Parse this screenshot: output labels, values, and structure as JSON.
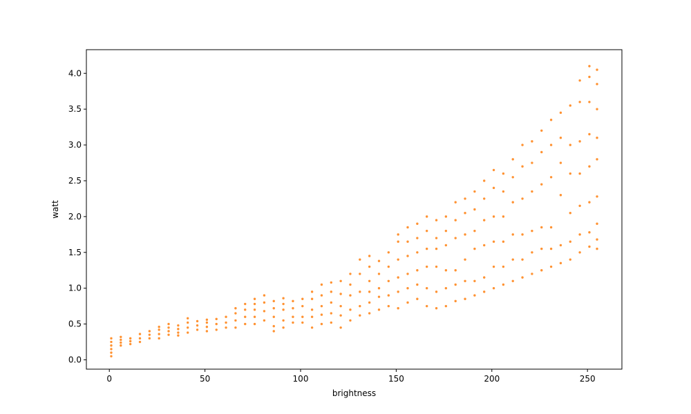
{
  "chart_data": {
    "type": "scatter",
    "xlabel": "brightness",
    "ylabel": "watt",
    "xlim": [
      -12,
      268
    ],
    "ylim": [
      -0.13,
      4.33
    ],
    "x_ticks": [
      0,
      50,
      100,
      150,
      200,
      250
    ],
    "x_tick_labels": [
      "0",
      "50",
      "100",
      "150",
      "200",
      "250"
    ],
    "y_ticks": [
      0,
      0.5,
      1.0,
      1.5,
      2.0,
      2.5,
      3.0,
      3.5,
      4.0
    ],
    "y_tick_labels": [
      "0.0",
      "0.5",
      "1.0",
      "1.5",
      "2.0",
      "2.5",
      "3.0",
      "3.5",
      "4.0"
    ],
    "grid": false,
    "point_color": "#ff7f0e",
    "series": [
      {
        "points": [
          [
            1,
            0.05
          ],
          [
            1,
            0.1
          ],
          [
            1,
            0.15
          ],
          [
            1,
            0.2
          ],
          [
            1,
            0.25
          ],
          [
            1,
            0.3
          ],
          [
            6,
            0.2
          ],
          [
            6,
            0.24
          ],
          [
            6,
            0.28
          ],
          [
            6,
            0.32
          ],
          [
            11,
            0.22
          ],
          [
            11,
            0.26
          ],
          [
            11,
            0.3
          ],
          [
            16,
            0.25
          ],
          [
            16,
            0.3
          ],
          [
            16,
            0.36
          ],
          [
            21,
            0.3
          ],
          [
            21,
            0.35
          ],
          [
            21,
            0.4
          ],
          [
            26,
            0.3
          ],
          [
            26,
            0.36
          ],
          [
            26,
            0.42
          ],
          [
            26,
            0.46
          ],
          [
            31,
            0.35
          ],
          [
            31,
            0.4
          ],
          [
            31,
            0.45
          ],
          [
            31,
            0.5
          ],
          [
            36,
            0.34
          ],
          [
            36,
            0.38
          ],
          [
            36,
            0.43
          ],
          [
            36,
            0.48
          ],
          [
            41,
            0.38
          ],
          [
            41,
            0.45
          ],
          [
            41,
            0.52
          ],
          [
            41,
            0.58
          ],
          [
            46,
            0.42
          ],
          [
            46,
            0.48
          ],
          [
            46,
            0.54
          ],
          [
            51,
            0.4
          ],
          [
            51,
            0.46
          ],
          [
            51,
            0.52
          ],
          [
            51,
            0.56
          ],
          [
            56,
            0.42
          ],
          [
            56,
            0.5
          ],
          [
            56,
            0.57
          ],
          [
            61,
            0.45
          ],
          [
            61,
            0.52
          ],
          [
            61,
            0.6
          ],
          [
            66,
            0.45
          ],
          [
            66,
            0.55
          ],
          [
            66,
            0.65
          ],
          [
            66,
            0.72
          ],
          [
            71,
            0.5
          ],
          [
            71,
            0.6
          ],
          [
            71,
            0.7
          ],
          [
            71,
            0.78
          ],
          [
            76,
            0.5
          ],
          [
            76,
            0.6
          ],
          [
            76,
            0.7
          ],
          [
            76,
            0.78
          ],
          [
            76,
            0.85
          ],
          [
            81,
            0.55
          ],
          [
            81,
            0.68
          ],
          [
            81,
            0.8
          ],
          [
            81,
            0.9
          ],
          [
            86,
            0.4
          ],
          [
            86,
            0.47
          ],
          [
            86,
            0.6
          ],
          [
            86,
            0.72
          ],
          [
            86,
            0.82
          ],
          [
            91,
            0.45
          ],
          [
            91,
            0.55
          ],
          [
            91,
            0.7
          ],
          [
            91,
            0.78
          ],
          [
            91,
            0.86
          ],
          [
            96,
            0.52
          ],
          [
            96,
            0.6
          ],
          [
            96,
            0.72
          ],
          [
            96,
            0.82
          ],
          [
            101,
            0.52
          ],
          [
            101,
            0.6
          ],
          [
            101,
            0.75
          ],
          [
            101,
            0.85
          ],
          [
            106,
            0.45
          ],
          [
            106,
            0.6
          ],
          [
            106,
            0.7
          ],
          [
            106,
            0.85
          ],
          [
            106,
            0.95
          ],
          [
            111,
            0.5
          ],
          [
            111,
            0.63
          ],
          [
            111,
            0.75
          ],
          [
            111,
            0.9
          ],
          [
            111,
            1.05
          ],
          [
            116,
            0.52
          ],
          [
            116,
            0.65
          ],
          [
            116,
            0.8
          ],
          [
            116,
            0.95
          ],
          [
            116,
            1.08
          ],
          [
            121,
            0.45
          ],
          [
            121,
            0.62
          ],
          [
            121,
            0.75
          ],
          [
            121,
            0.92
          ],
          [
            121,
            1.1
          ],
          [
            126,
            0.55
          ],
          [
            126,
            0.7
          ],
          [
            126,
            0.9
          ],
          [
            126,
            1.05
          ],
          [
            126,
            1.2
          ],
          [
            131,
            0.62
          ],
          [
            131,
            0.75
          ],
          [
            131,
            0.95
          ],
          [
            131,
            1.2
          ],
          [
            131,
            1.4
          ],
          [
            136,
            0.65
          ],
          [
            136,
            0.8
          ],
          [
            136,
            0.95
          ],
          [
            136,
            1.1
          ],
          [
            136,
            1.3
          ],
          [
            136,
            1.45
          ],
          [
            141,
            0.7
          ],
          [
            141,
            0.88
          ],
          [
            141,
            1.0
          ],
          [
            141,
            1.2
          ],
          [
            141,
            1.38
          ],
          [
            146,
            0.75
          ],
          [
            146,
            0.9
          ],
          [
            146,
            1.1
          ],
          [
            146,
            1.3
          ],
          [
            146,
            1.5
          ],
          [
            151,
            0.72
          ],
          [
            151,
            0.95
          ],
          [
            151,
            1.15
          ],
          [
            151,
            1.4
          ],
          [
            151,
            1.65
          ],
          [
            151,
            1.75
          ],
          [
            156,
            0.8
          ],
          [
            156,
            1.0
          ],
          [
            156,
            1.2
          ],
          [
            156,
            1.45
          ],
          [
            156,
            1.65
          ],
          [
            156,
            1.85
          ],
          [
            161,
            0.85
          ],
          [
            161,
            1.05
          ],
          [
            161,
            1.25
          ],
          [
            161,
            1.5
          ],
          [
            161,
            1.7
          ],
          [
            161,
            1.9
          ],
          [
            166,
            0.75
          ],
          [
            166,
            1.0
          ],
          [
            166,
            1.3
          ],
          [
            166,
            1.55
          ],
          [
            166,
            1.8
          ],
          [
            166,
            2.0
          ],
          [
            171,
            0.72
          ],
          [
            171,
            0.95
          ],
          [
            171,
            1.3
          ],
          [
            171,
            1.55
          ],
          [
            171,
            1.7
          ],
          [
            171,
            1.95
          ],
          [
            176,
            0.75
          ],
          [
            176,
            1.0
          ],
          [
            176,
            1.25
          ],
          [
            176,
            1.6
          ],
          [
            176,
            1.8
          ],
          [
            176,
            2.0
          ],
          [
            181,
            0.82
          ],
          [
            181,
            1.05
          ],
          [
            181,
            1.25
          ],
          [
            181,
            1.7
          ],
          [
            181,
            1.95
          ],
          [
            181,
            2.2
          ],
          [
            186,
            0.85
          ],
          [
            186,
            1.1
          ],
          [
            186,
            1.4
          ],
          [
            186,
            1.75
          ],
          [
            186,
            2.05
          ],
          [
            186,
            2.25
          ],
          [
            191,
            0.9
          ],
          [
            191,
            1.1
          ],
          [
            191,
            1.55
          ],
          [
            191,
            1.8
          ],
          [
            191,
            2.1
          ],
          [
            191,
            2.35
          ],
          [
            196,
            0.95
          ],
          [
            196,
            1.15
          ],
          [
            196,
            1.6
          ],
          [
            196,
            1.95
          ],
          [
            196,
            2.25
          ],
          [
            196,
            2.5
          ],
          [
            201,
            1.0
          ],
          [
            201,
            1.3
          ],
          [
            201,
            1.65
          ],
          [
            201,
            2.0
          ],
          [
            201,
            2.4
          ],
          [
            201,
            2.65
          ],
          [
            206,
            1.05
          ],
          [
            206,
            1.3
          ],
          [
            206,
            1.65
          ],
          [
            206,
            2.0
          ],
          [
            206,
            2.35
          ],
          [
            206,
            2.6
          ],
          [
            211,
            1.1
          ],
          [
            211,
            1.4
          ],
          [
            211,
            1.75
          ],
          [
            211,
            2.2
          ],
          [
            211,
            2.55
          ],
          [
            211,
            2.8
          ],
          [
            216,
            1.15
          ],
          [
            216,
            1.4
          ],
          [
            216,
            1.75
          ],
          [
            216,
            2.25
          ],
          [
            216,
            2.7
          ],
          [
            216,
            3.0
          ],
          [
            221,
            1.2
          ],
          [
            221,
            1.5
          ],
          [
            221,
            1.8
          ],
          [
            221,
            2.35
          ],
          [
            221,
            2.75
          ],
          [
            221,
            3.05
          ],
          [
            226,
            1.25
          ],
          [
            226,
            1.55
          ],
          [
            226,
            1.85
          ],
          [
            226,
            2.45
          ],
          [
            226,
            2.9
          ],
          [
            226,
            3.2
          ],
          [
            231,
            1.3
          ],
          [
            231,
            1.55
          ],
          [
            231,
            1.85
          ],
          [
            231,
            2.55
          ],
          [
            231,
            3.0
          ],
          [
            231,
            3.35
          ],
          [
            236,
            1.35
          ],
          [
            236,
            1.6
          ],
          [
            236,
            2.3
          ],
          [
            236,
            2.75
          ],
          [
            236,
            3.1
          ],
          [
            236,
            3.45
          ],
          [
            241,
            1.4
          ],
          [
            241,
            1.65
          ],
          [
            241,
            2.05
          ],
          [
            241,
            2.6
          ],
          [
            241,
            3.0
          ],
          [
            241,
            3.55
          ],
          [
            246,
            1.5
          ],
          [
            246,
            1.75
          ],
          [
            246,
            2.15
          ],
          [
            246,
            2.6
          ],
          [
            246,
            3.05
          ],
          [
            246,
            3.6
          ],
          [
            246,
            3.9
          ],
          [
            251,
            1.58
          ],
          [
            251,
            1.78
          ],
          [
            251,
            2.2
          ],
          [
            251,
            2.7
          ],
          [
            251,
            3.15
          ],
          [
            251,
            3.6
          ],
          [
            251,
            3.95
          ],
          [
            251,
            4.1
          ],
          [
            255,
            1.55
          ],
          [
            255,
            1.68
          ],
          [
            255,
            1.9
          ],
          [
            255,
            2.28
          ],
          [
            255,
            2.8
          ],
          [
            255,
            3.1
          ],
          [
            255,
            3.5
          ],
          [
            255,
            3.85
          ],
          [
            255,
            4.05
          ]
        ]
      }
    ]
  }
}
